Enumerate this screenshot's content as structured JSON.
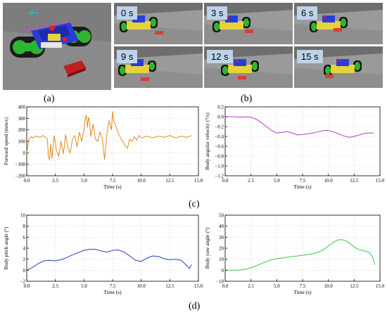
{
  "figure": {
    "label_a": "(a)",
    "label_b": "(b)",
    "label_c": "(c)",
    "label_d": "(d)",
    "snapshots": [
      "0 s",
      "3 s",
      "6 s",
      "9 s",
      "12 s",
      "15 s"
    ],
    "colors": {
      "line1": "#e08a1e",
      "line2": "#b43cc8",
      "line3": "#2a3fbf",
      "line4": "#3cc83c"
    }
  },
  "chart_data": [
    {
      "id": "forward-speed",
      "type": "line",
      "xlabel": "Time (s)",
      "ylabel": "Forward speed (mm/s)",
      "xlim": [
        0,
        15
      ],
      "ylim": [
        -200,
        400
      ],
      "xticks": [
        0.0,
        2.5,
        5.0,
        7.5,
        10.0,
        12.5,
        15.0
      ],
      "xtick_labels": [
        "0.0",
        "2.5",
        "5.0",
        "7.5",
        "10.0",
        "12.5",
        "15.0"
      ],
      "yticks": [
        -200,
        -100,
        0,
        100,
        200,
        300,
        400
      ],
      "ytick_labels": [
        "−200",
        "−100",
        "0",
        "100",
        "200",
        "300",
        "400"
      ],
      "grid": true,
      "x": [
        0.0,
        0.2,
        0.4,
        0.6,
        0.8,
        1.0,
        1.2,
        1.4,
        1.6,
        1.8,
        1.9,
        2.0,
        2.1,
        2.2,
        2.4,
        2.6,
        2.8,
        3.0,
        3.2,
        3.4,
        3.6,
        3.8,
        4.0,
        4.2,
        4.4,
        4.6,
        4.8,
        5.0,
        5.1,
        5.2,
        5.3,
        5.4,
        5.5,
        5.6,
        5.8,
        6.0,
        6.2,
        6.4,
        6.6,
        6.8,
        7.0,
        7.2,
        7.4,
        7.5,
        7.6,
        7.8,
        8.0,
        8.2,
        8.4,
        8.6,
        8.8,
        9.0,
        9.2,
        9.4,
        9.6,
        9.8,
        10.0,
        10.5,
        11.0,
        11.5,
        12.0,
        12.5,
        13.0,
        13.5,
        14.0,
        14.4
      ],
      "y": [
        0,
        120,
        140,
        130,
        145,
        140,
        135,
        150,
        140,
        120,
        -40,
        -60,
        80,
        -50,
        150,
        20,
        -30,
        100,
        -10,
        160,
        40,
        0,
        120,
        150,
        50,
        180,
        100,
        200,
        290,
        330,
        220,
        310,
        260,
        140,
        250,
        120,
        100,
        180,
        130,
        -60,
        160,
        280,
        200,
        360,
        280,
        230,
        170,
        130,
        100,
        60,
        40,
        120,
        100,
        140,
        110,
        150,
        130,
        145,
        130,
        145,
        135,
        150,
        130,
        145,
        135,
        150
      ]
    },
    {
      "id": "body-angular-velocity",
      "type": "line",
      "xlabel": "Time (s)",
      "ylabel": "Body angular velocity (°/s)",
      "xlim": [
        0,
        15
      ],
      "ylim": [
        -1.2,
        0.2
      ],
      "xticks": [
        0.0,
        2.5,
        5.0,
        7.5,
        10.0,
        12.5,
        15.0
      ],
      "xtick_labels": [
        "0.0",
        "2.5",
        "5.0",
        "7.5",
        "10.0",
        "12.5",
        "15.0"
      ],
      "yticks": [
        0.2,
        0.0,
        -0.2,
        -0.4,
        -0.6,
        -0.8,
        -1.0,
        -1.2
      ],
      "ytick_labels": [
        "0.2",
        "0.0",
        "−0.2",
        "−0.4",
        "−0.6",
        "−0.8",
        "−1.0",
        "−1.2"
      ],
      "grid": true,
      "x": [
        0.0,
        0.5,
        1.0,
        1.5,
        2.0,
        2.5,
        3.0,
        3.5,
        4.0,
        4.5,
        5.0,
        5.5,
        6.0,
        6.5,
        7.0,
        7.5,
        8.0,
        8.5,
        9.0,
        9.5,
        10.0,
        10.5,
        11.0,
        11.5,
        12.0,
        12.5,
        13.0,
        13.5,
        14.0,
        14.4
      ],
      "y": [
        0.0,
        0.0,
        0.0,
        -0.01,
        0.0,
        -0.01,
        -0.05,
        -0.12,
        -0.2,
        -0.28,
        -0.33,
        -0.32,
        -0.3,
        -0.33,
        -0.37,
        -0.36,
        -0.35,
        -0.33,
        -0.31,
        -0.28,
        -0.28,
        -0.31,
        -0.35,
        -0.39,
        -0.42,
        -0.4,
        -0.37,
        -0.34,
        -0.33,
        -0.33
      ]
    },
    {
      "id": "body-pitch-angle",
      "type": "line",
      "xlabel": "Time (s)",
      "ylabel": "Body pitch angle (°)",
      "xlim": [
        0,
        15
      ],
      "ylim": [
        -2,
        10
      ],
      "xticks": [
        0.0,
        2.5,
        5.0,
        7.5,
        10.0,
        12.5,
        15.0
      ],
      "xtick_labels": [
        "0.0",
        "2.5",
        "5.0",
        "7.5",
        "10.0",
        "12.5",
        "15.0"
      ],
      "yticks": [
        -2,
        0,
        2,
        4,
        6,
        8,
        10
      ],
      "ytick_labels": [
        "−2",
        "0",
        "2",
        "4",
        "6",
        "8",
        "10"
      ],
      "grid": true,
      "x": [
        0.0,
        0.5,
        1.0,
        1.5,
        2.0,
        2.5,
        3.0,
        3.5,
        4.0,
        4.5,
        5.0,
        5.5,
        6.0,
        6.5,
        7.0,
        7.5,
        8.0,
        8.5,
        9.0,
        9.5,
        10.0,
        10.5,
        11.0,
        11.5,
        12.0,
        12.5,
        13.0,
        13.5,
        14.0,
        14.2,
        14.4
      ],
      "y": [
        0.0,
        0.5,
        1.2,
        1.7,
        1.8,
        1.7,
        1.9,
        2.3,
        2.8,
        3.2,
        3.6,
        3.8,
        3.8,
        3.5,
        3.3,
        3.6,
        3.7,
        3.3,
        2.6,
        1.8,
        1.6,
        2.2,
        2.6,
        2.5,
        2.1,
        1.9,
        2.0,
        1.8,
        0.8,
        0.3,
        1.0
      ]
    },
    {
      "id": "body-yaw-angle",
      "type": "line",
      "xlabel": "Time (s)",
      "ylabel": "Body yaw angle (°)",
      "xlim": [
        0,
        15
      ],
      "ylim": [
        -10,
        50
      ],
      "xticks": [
        0.0,
        2.5,
        5.0,
        7.5,
        10.0,
        12.5,
        15.0
      ],
      "xtick_labels": [
        "0.0",
        "2.5",
        "5.0",
        "7.5",
        "10.0",
        "12.5",
        "15.0"
      ],
      "yticks": [
        -10,
        0,
        10,
        20,
        30,
        40,
        50
      ],
      "ytick_labels": [
        "−10",
        "0",
        "10",
        "20",
        "30",
        "40",
        "50"
      ],
      "grid": true,
      "x": [
        0.0,
        0.5,
        1.0,
        1.5,
        2.0,
        2.5,
        3.0,
        3.5,
        4.0,
        4.5,
        5.0,
        5.5,
        6.0,
        6.5,
        7.0,
        7.5,
        8.0,
        8.5,
        9.0,
        9.5,
        10.0,
        10.5,
        11.0,
        11.5,
        12.0,
        12.5,
        13.0,
        13.5,
        14.0,
        14.3,
        14.5
      ],
      "y": [
        0.0,
        0.0,
        0.0,
        0.3,
        1.0,
        2.2,
        4.0,
        6.0,
        8.0,
        9.5,
        10.5,
        11.0,
        11.8,
        12.5,
        13.0,
        13.6,
        14.2,
        15.0,
        16.5,
        18.5,
        22.0,
        25.5,
        27.8,
        27.5,
        25.0,
        21.0,
        18.5,
        17.5,
        16.0,
        12.0,
        5.0
      ]
    }
  ]
}
